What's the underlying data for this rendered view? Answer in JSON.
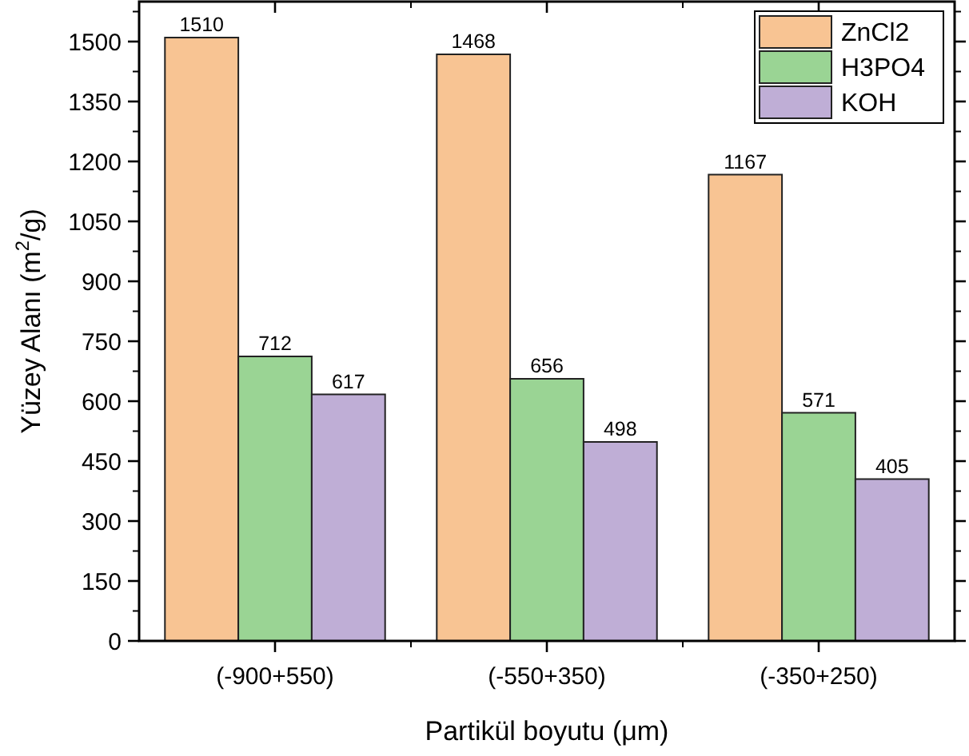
{
  "chart_data": {
    "type": "bar",
    "xlabel": "Partikül boyutu (μm)",
    "ylabel": "Yüzey Alanı (m$^{2}$/g)",
    "categories": [
      "(-900+550)",
      "(-550+350)",
      "(-350+250)"
    ],
    "series": [
      {
        "name": "ZnCl2",
        "color": "#f8c493",
        "values": [
          1510,
          1468,
          1167
        ]
      },
      {
        "name": "H3PO4",
        "color": "#9ad494",
        "values": [
          712,
          656,
          571
        ]
      },
      {
        "name": "KOH",
        "color": "#bfaed6",
        "values": [
          617,
          498,
          405
        ]
      }
    ],
    "ylim": [
      0,
      1600
    ],
    "yticks": [
      0,
      150,
      300,
      450,
      600,
      750,
      900,
      1050,
      1200,
      1350,
      1500
    ],
    "data_labels": true,
    "legend": "top right",
    "grid": false
  }
}
